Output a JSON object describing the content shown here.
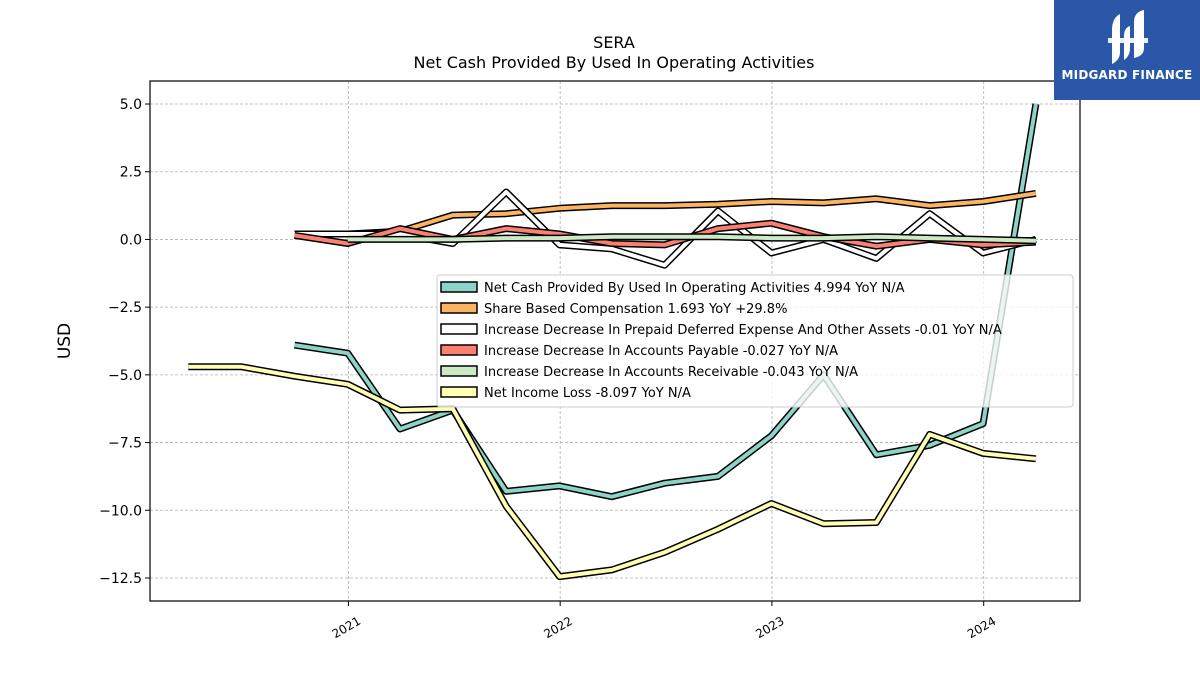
{
  "brand": {
    "name": "MIDGARD FINANCE",
    "bg_color": "#2a57a8"
  },
  "chart_data": {
    "type": "line",
    "title": "SERA",
    "subtitle": "Net Cash Provided By Used In Operating Activities",
    "xlabel": "",
    "ylabel": "USD",
    "ylim": [
      -13.35,
      5.85
    ],
    "xlim": [
      "2020-01-25",
      "2024-06-15"
    ],
    "yticks": [
      5.0,
      2.5,
      0.0,
      -2.5,
      -5.0,
      -7.5,
      -10.0,
      -12.5
    ],
    "ytick_labels": [
      "5.0",
      "2.5",
      "0.0",
      "−2.5",
      "−5.0",
      "−7.5",
      "−10.0",
      "−12.5"
    ],
    "xticks": [
      "2021-01-01",
      "2022-01-01",
      "2023-01-01",
      "2024-01-01"
    ],
    "xtick_labels": [
      "2021",
      "2022",
      "2023",
      "2024"
    ],
    "grid": true,
    "legend_position": "center-right",
    "series": [
      {
        "name": "Net Cash Provided By Used In Operating Activities",
        "legend_label": "Net Cash Provided By Used In Operating Activities  4.994 YoY N/A",
        "color": "#8dd3c7",
        "points": [
          [
            "2020-09-30",
            -3.9
          ],
          [
            "2020-12-31",
            -4.2
          ],
          [
            "2021-03-31",
            -7.0
          ],
          [
            "2021-06-30",
            -6.3
          ],
          [
            "2021-09-30",
            -9.3
          ],
          [
            "2021-12-31",
            -9.1
          ],
          [
            "2022-03-31",
            -9.5
          ],
          [
            "2022-06-30",
            -9.0
          ],
          [
            "2022-09-30",
            -8.75
          ],
          [
            "2022-12-31",
            -7.25
          ],
          [
            "2023-03-31",
            -5.0
          ],
          [
            "2023-06-30",
            -7.95
          ],
          [
            "2023-09-30",
            -7.6
          ],
          [
            "2023-12-31",
            -6.8
          ],
          [
            "2024-03-31",
            5.0
          ]
        ]
      },
      {
        "name": "Share Based Compensation",
        "legend_label": "Share Based Compensation  1.693 YoY +29.8%",
        "color": "#fdb462",
        "points": [
          [
            "2020-09-30",
            0.2
          ],
          [
            "2020-12-31",
            0.2
          ],
          [
            "2021-03-31",
            0.3
          ],
          [
            "2021-06-30",
            0.9
          ],
          [
            "2021-09-30",
            0.95
          ],
          [
            "2021-12-31",
            1.15
          ],
          [
            "2022-03-31",
            1.25
          ],
          [
            "2022-06-30",
            1.25
          ],
          [
            "2022-09-30",
            1.3
          ],
          [
            "2022-12-31",
            1.4
          ],
          [
            "2023-03-31",
            1.35
          ],
          [
            "2023-06-30",
            1.5
          ],
          [
            "2023-09-30",
            1.25
          ],
          [
            "2023-12-31",
            1.4
          ],
          [
            "2024-03-31",
            1.7
          ]
        ]
      },
      {
        "name": "Increase Decrease In Prepaid Deferred Expense And Other Assets",
        "legend_label": "Increase Decrease In Prepaid Deferred Expense And Other Assets  -0.01 YoY N/A",
        "color": "#ffffff",
        "points": [
          [
            "2020-09-30",
            0.2
          ],
          [
            "2020-12-31",
            0.2
          ],
          [
            "2021-03-31",
            0.2
          ],
          [
            "2021-06-30",
            -0.15
          ],
          [
            "2021-09-30",
            1.75
          ],
          [
            "2021-12-31",
            -0.2
          ],
          [
            "2022-03-31",
            -0.35
          ],
          [
            "2022-06-30",
            -0.95
          ],
          [
            "2022-09-30",
            1.05
          ],
          [
            "2022-12-31",
            -0.5
          ],
          [
            "2023-03-31",
            0.0
          ],
          [
            "2023-06-30",
            -0.7
          ],
          [
            "2023-09-30",
            0.95
          ],
          [
            "2023-12-31",
            -0.5
          ],
          [
            "2024-03-31",
            0.0
          ]
        ]
      },
      {
        "name": "Increase Decrease In Accounts Payable",
        "legend_label": "Increase Decrease In Accounts Payable  -0.027 YoY N/A",
        "color": "#fb8072",
        "points": [
          [
            "2020-09-30",
            0.15
          ],
          [
            "2020-12-31",
            -0.15
          ],
          [
            "2021-03-31",
            0.4
          ],
          [
            "2021-06-30",
            0.0
          ],
          [
            "2021-09-30",
            0.4
          ],
          [
            "2021-12-31",
            0.2
          ],
          [
            "2022-03-31",
            -0.15
          ],
          [
            "2022-06-30",
            -0.2
          ],
          [
            "2022-09-30",
            0.4
          ],
          [
            "2022-12-31",
            0.6
          ],
          [
            "2023-03-31",
            0.1
          ],
          [
            "2023-06-30",
            -0.25
          ],
          [
            "2023-09-30",
            0.0
          ],
          [
            "2023-12-31",
            -0.2
          ],
          [
            "2024-03-31",
            -0.1
          ]
        ]
      },
      {
        "name": "Increase Decrease In Accounts Receivable",
        "legend_label": "Increase Decrease In Accounts Receivable  -0.043 YoY N/A",
        "color": "#ccebc5",
        "points": [
          [
            "2020-12-31",
            0.0
          ],
          [
            "2021-03-31",
            0.0
          ],
          [
            "2021-06-30",
            0.0
          ],
          [
            "2021-09-30",
            0.05
          ],
          [
            "2021-12-31",
            0.05
          ],
          [
            "2022-03-31",
            0.1
          ],
          [
            "2022-06-30",
            0.1
          ],
          [
            "2022-09-30",
            0.1
          ],
          [
            "2022-12-31",
            0.05
          ],
          [
            "2023-03-31",
            0.05
          ],
          [
            "2023-06-30",
            0.1
          ],
          [
            "2023-09-30",
            0.05
          ],
          [
            "2023-12-31",
            0.0
          ],
          [
            "2024-03-31",
            -0.05
          ]
        ]
      },
      {
        "name": "Net Income Loss",
        "legend_label": "Net Income Loss  -8.097 YoY N/A",
        "color": "#ffffb3",
        "points": [
          [
            "2020-03-31",
            -4.7
          ],
          [
            "2020-06-30",
            -4.7
          ],
          [
            "2020-09-30",
            -5.05
          ],
          [
            "2020-12-31",
            -5.35
          ],
          [
            "2021-03-31",
            -6.3
          ],
          [
            "2021-06-30",
            -6.25
          ],
          [
            "2021-09-30",
            -9.85
          ],
          [
            "2021-12-31",
            -12.45
          ],
          [
            "2022-03-31",
            -12.2
          ],
          [
            "2022-06-30",
            -11.55
          ],
          [
            "2022-09-30",
            -10.7
          ],
          [
            "2022-12-31",
            -9.75
          ],
          [
            "2023-03-31",
            -10.5
          ],
          [
            "2023-06-30",
            -10.45
          ],
          [
            "2023-09-30",
            -7.2
          ],
          [
            "2023-12-31",
            -7.9
          ],
          [
            "2024-03-31",
            -8.1
          ]
        ]
      }
    ]
  }
}
